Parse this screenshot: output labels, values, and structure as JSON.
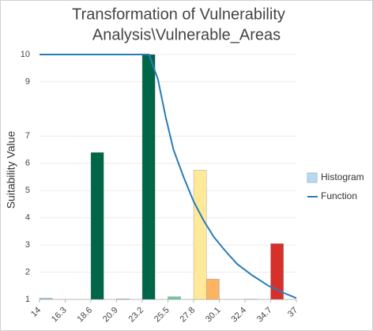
{
  "chart_data": {
    "type": "histogram",
    "title": [
      "Transformation of Vulnerability",
      "Analysis\\Vulnerable_Areas"
    ],
    "ylabel": "Suitability Value",
    "bins": [
      14,
      15.15,
      16.3,
      17.45,
      18.6,
      19.75,
      20.9,
      22.05,
      23.2,
      24.35,
      25.5,
      26.65,
      27.8,
      28.95,
      30.1,
      31.25,
      32.4,
      33.55,
      34.7,
      35.85,
      37
    ],
    "series": [
      {
        "name": "Histogram",
        "type": "histogram",
        "color": "#b9d9ee",
        "colors": [
          "#9ecae1",
          "#cccccc",
          "#cccccc",
          "#cccccc",
          "#006648",
          "#cccccc",
          "#9fc9b5",
          "#cccccc",
          "#006648",
          "#cccccc",
          "#74c69d",
          "#cccccc",
          "#fee99a",
          "#fdb462",
          "#cccccc",
          "#cccccc",
          "#d9d9d9",
          "#cccccc",
          "#d7302a",
          "#cccccc"
        ],
        "values": [
          1.05,
          1,
          1,
          1,
          6.4,
          1,
          1.02,
          1,
          10,
          1,
          1.1,
          1,
          5.75,
          1.75,
          1,
          1,
          1.01,
          1,
          3.05,
          1
        ]
      },
      {
        "name": "Function",
        "type": "line",
        "color": "#2b7bb9",
        "x": [
          14,
          23.8,
          24.6,
          25.3,
          26,
          26.9,
          27.8,
          28.7,
          29.6,
          30.6,
          31.7,
          33,
          34.5,
          35.8,
          37
        ],
        "values": [
          10,
          10,
          9.1,
          7.7,
          6.5,
          5.5,
          4.6,
          3.9,
          3.3,
          2.8,
          2.3,
          1.9,
          1.5,
          1.25,
          1.05
        ]
      }
    ],
    "xlim": [
      14,
      37
    ],
    "xticks": [
      14,
      16.3,
      18.6,
      20.9,
      23.2,
      25.5,
      27.8,
      30.1,
      32.4,
      34.7,
      37
    ],
    "ylim": [
      1,
      10
    ],
    "yticks": [
      1,
      2,
      3,
      4,
      5,
      6,
      7,
      9,
      10
    ],
    "grid": true
  }
}
